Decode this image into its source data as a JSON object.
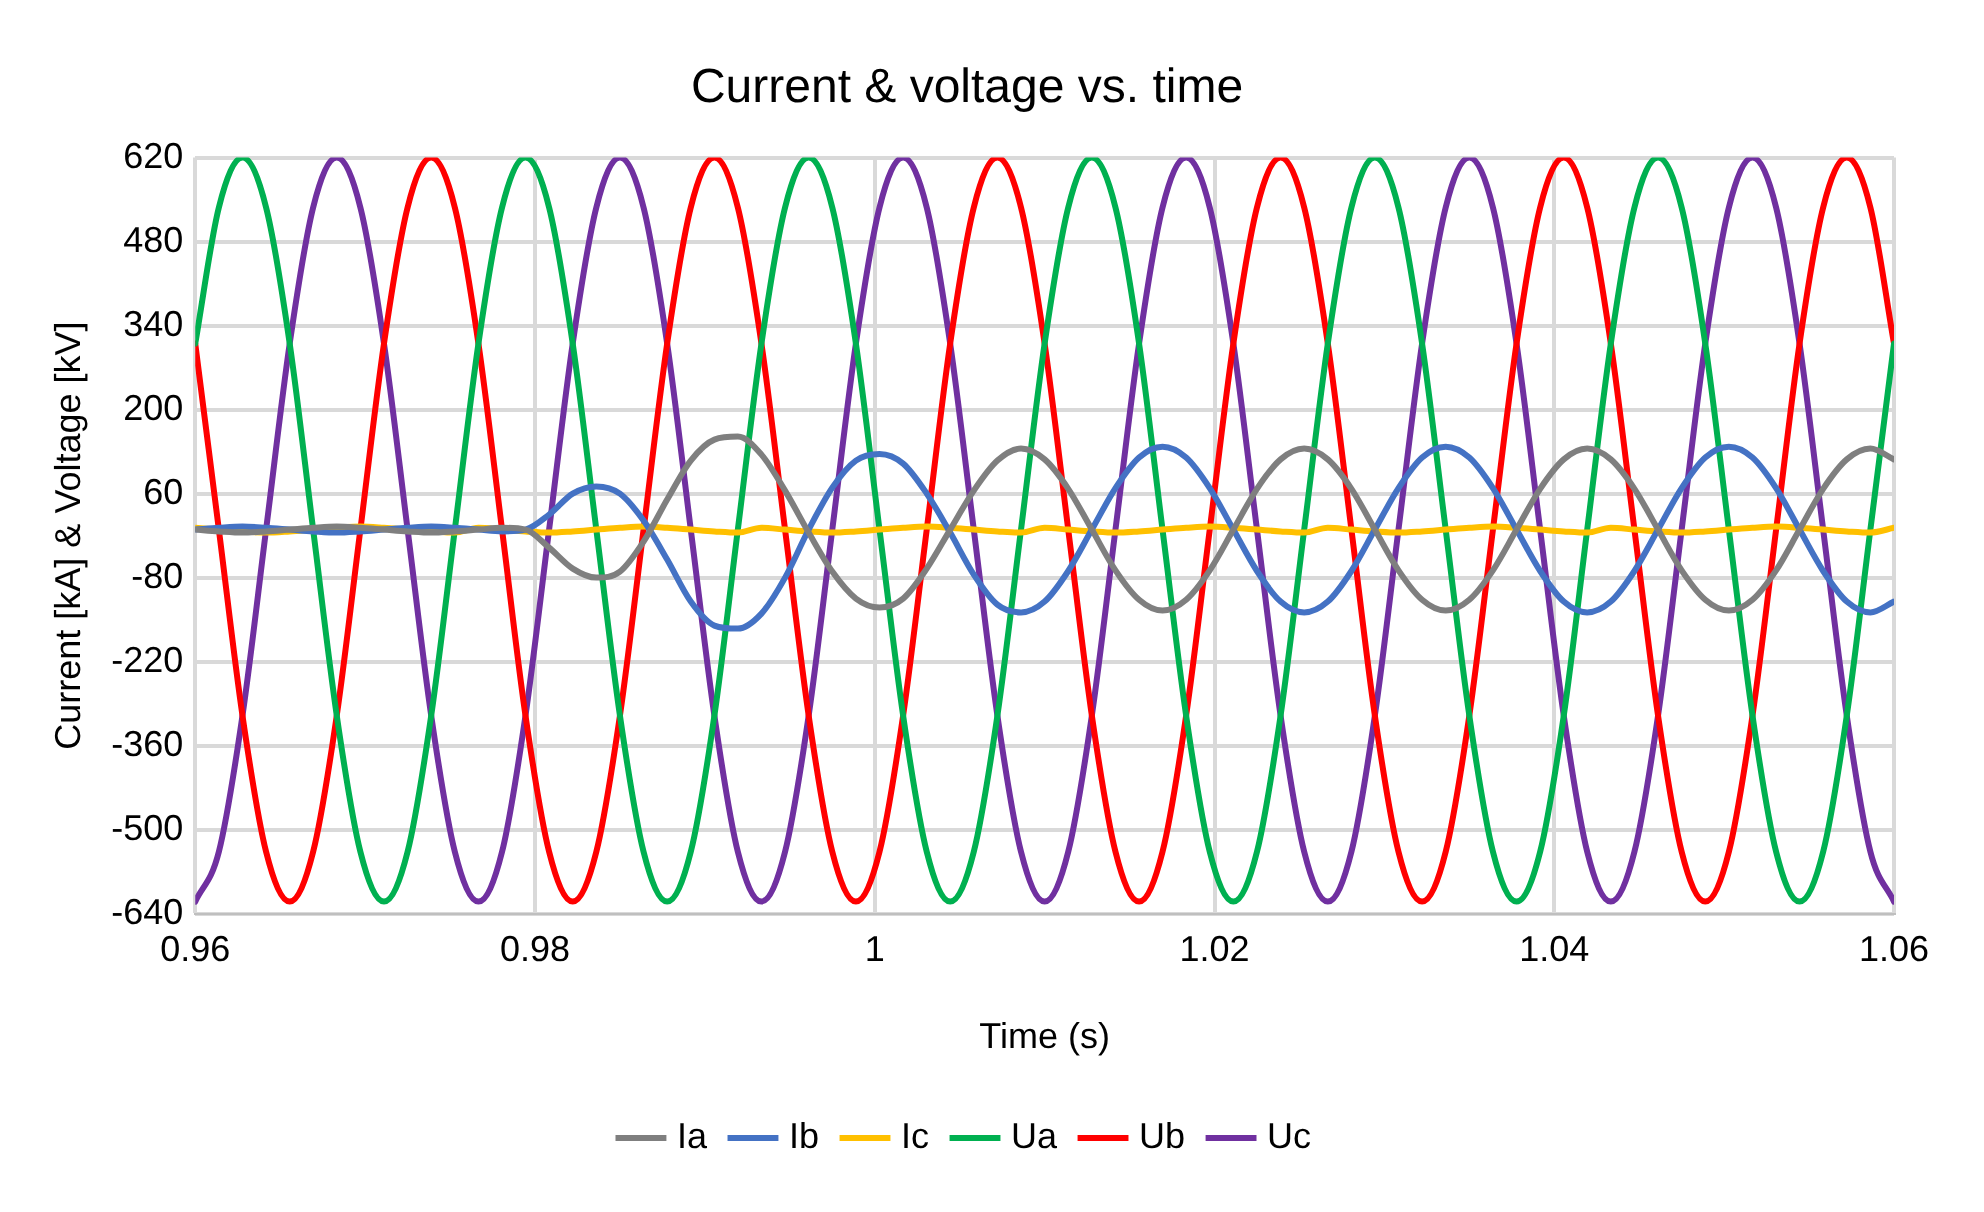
{
  "chart_data": {
    "type": "line",
    "title": "Current & voltage vs. time",
    "xlabel": "Time (s)",
    "ylabel": "Current [kA] & Voltage [kV]",
    "x": [
      0.96,
      0.96139,
      0.96278,
      0.96417,
      0.96556,
      0.96694,
      0.96833,
      0.96972,
      0.97111,
      0.9725,
      0.97389,
      0.97528,
      0.97667,
      0.97806,
      0.97944,
      0.98083,
      0.98222,
      0.98361,
      0.985,
      0.98639,
      0.98778,
      0.98917,
      0.99056,
      0.99194,
      0.99333,
      0.99472,
      0.99611,
      0.9975,
      0.99889,
      1.00028,
      1.00167,
      1.00306,
      1.00444,
      1.00583,
      1.00722,
      1.00861,
      1.01,
      1.01139,
      1.01278,
      1.01417,
      1.01556,
      1.01694,
      1.01833,
      1.01972,
      1.02111,
      1.0225,
      1.02389,
      1.02528,
      1.02667,
      1.02806,
      1.02944,
      1.03083,
      1.03222,
      1.03361,
      1.035,
      1.03639,
      1.03778,
      1.03917,
      1.04056,
      1.04194,
      1.04333,
      1.04472,
      1.04611,
      1.0475,
      1.04889,
      1.05028,
      1.05167,
      1.05306,
      1.05444,
      1.05583,
      1.05722,
      1.05861,
      1.06
    ],
    "series": [
      {
        "name": "Ia",
        "color": "#7f7f7f",
        "values": [
          0,
          -3,
          -5,
          -3,
          0,
          3,
          5,
          3,
          0,
          -3,
          -5,
          -3,
          0,
          3,
          0,
          -30,
          -65,
          -80,
          -70,
          -20,
          50,
          115,
          150,
          155,
          125,
          65,
          -5,
          -70,
          -115,
          -130,
          -115,
          -65,
          0,
          65,
          115,
          135,
          117,
          68,
          0,
          -68,
          -117,
          -135,
          -117,
          -68,
          0,
          68,
          117,
          135,
          117,
          68,
          0,
          -68,
          -117,
          -135,
          -117,
          -68,
          0,
          68,
          117,
          135,
          117,
          68,
          0,
          -68,
          -117,
          -135,
          -117,
          -68,
          0,
          68,
          117,
          135,
          117
        ]
      },
      {
        "name": "Ib",
        "color": "#4472c4",
        "values": [
          0,
          3,
          5,
          3,
          0,
          -3,
          -5,
          -3,
          0,
          3,
          5,
          3,
          0,
          -3,
          0,
          25,
          60,
          72,
          60,
          15,
          -50,
          -120,
          -160,
          -165,
          -140,
          -80,
          0,
          70,
          115,
          126,
          110,
          60,
          -5,
          -75,
          -125,
          -138,
          -120,
          -69,
          0,
          69,
          120,
          138,
          120,
          69,
          0,
          -69,
          -120,
          -138,
          -120,
          -69,
          0,
          69,
          120,
          138,
          120,
          69,
          0,
          -69,
          -120,
          -138,
          -120,
          -69,
          0,
          69,
          120,
          138,
          120,
          69,
          0,
          -69,
          -120,
          -138,
          -120
        ]
      },
      {
        "name": "Ic",
        "color": "#ffc000",
        "values": [
          3,
          0,
          -3,
          -5,
          -3,
          0,
          3,
          5,
          3,
          0,
          -3,
          -5,
          3,
          0,
          -3,
          -5,
          -3,
          0,
          3,
          5,
          3,
          0,
          -3,
          -5,
          3,
          0,
          -3,
          -5,
          -3,
          0,
          3,
          5,
          3,
          0,
          -3,
          -5,
          3,
          0,
          -3,
          -5,
          -3,
          0,
          3,
          5,
          3,
          0,
          -3,
          -5,
          3,
          0,
          -3,
          -5,
          -3,
          0,
          3,
          5,
          3,
          0,
          -3,
          -5,
          3,
          0,
          -3,
          -5,
          -3,
          0,
          3,
          5,
          3,
          0,
          -3,
          -5,
          3
        ]
      },
      {
        "name": "Ua",
        "color": "#00b050",
        "values": [
          310,
          537,
          620,
          537,
          310,
          0,
          -310,
          -537,
          -620,
          -537,
          -310,
          0,
          310,
          537,
          620,
          537,
          310,
          0,
          -310,
          -537,
          -620,
          -537,
          -310,
          0,
          310,
          537,
          620,
          537,
          310,
          0,
          -310,
          -537,
          -620,
          -537,
          -310,
          0,
          310,
          537,
          620,
          537,
          310,
          0,
          -310,
          -537,
          -620,
          -537,
          -310,
          0,
          310,
          537,
          620,
          537,
          310,
          0,
          -310,
          -537,
          -620,
          -537,
          -310,
          0,
          310,
          537,
          620,
          537,
          310,
          0,
          -310,
          -537,
          -620,
          -537,
          -310,
          0,
          310
        ]
      },
      {
        "name": "Ub",
        "color": "#ff0000",
        "values": [
          310,
          0,
          -310,
          -537,
          -620,
          -537,
          -310,
          0,
          310,
          537,
          620,
          537,
          310,
          0,
          -310,
          -537,
          -620,
          -537,
          -310,
          0,
          310,
          537,
          620,
          537,
          310,
          0,
          -310,
          -537,
          -620,
          -537,
          -310,
          0,
          310,
          537,
          620,
          537,
          310,
          0,
          -310,
          -537,
          -620,
          -537,
          -310,
          0,
          310,
          537,
          620,
          537,
          310,
          0,
          -310,
          -537,
          -620,
          -537,
          -310,
          0,
          310,
          537,
          620,
          537,
          310,
          0,
          -310,
          -537,
          -620,
          -537,
          -310,
          0,
          310,
          537,
          620,
          537,
          310
        ]
      },
      {
        "name": "Uc",
        "color": "#7030a0",
        "values": [
          -620,
          -537,
          -310,
          0,
          310,
          537,
          620,
          537,
          310,
          0,
          -310,
          -537,
          -620,
          -537,
          -310,
          0,
          310,
          537,
          620,
          537,
          310,
          0,
          -310,
          -537,
          -620,
          -537,
          -310,
          0,
          310,
          537,
          620,
          537,
          310,
          0,
          -310,
          -537,
          -620,
          -537,
          -310,
          0,
          310,
          537,
          620,
          537,
          310,
          0,
          -310,
          -537,
          -620,
          -537,
          -310,
          0,
          310,
          537,
          620,
          537,
          310,
          0,
          -310,
          -537,
          -620,
          -537,
          -310,
          0,
          310,
          537,
          620,
          537,
          310,
          0,
          -310,
          -537,
          -620
        ]
      }
    ],
    "xlim": [
      0.96,
      1.06
    ],
    "xticks": [
      0.96,
      0.98,
      1,
      1.02,
      1.04,
      1.06
    ],
    "ylim": [
      -640,
      620
    ],
    "yticks": [
      -640,
      -500,
      -360,
      -220,
      -80,
      60,
      200,
      340,
      480,
      620
    ],
    "grid": true,
    "legend": "bottom",
    "marker": "none",
    "line_style": "solid"
  }
}
